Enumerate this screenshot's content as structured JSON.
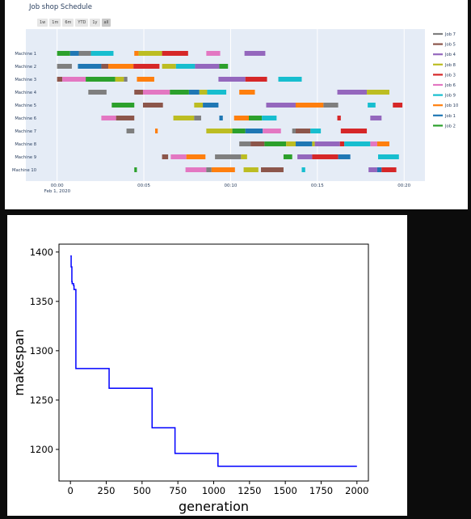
{
  "gantt": {
    "title": "Job shop Schedule",
    "range_buttons": [
      "1w",
      "1m",
      "6m",
      "YTD",
      "1y",
      "all"
    ],
    "active_range": "all",
    "date_label": "Feb 1, 2020",
    "machines": [
      "Machine 1",
      "Machine 2",
      "Machine 3",
      "Machine 4",
      "Machine 5",
      "Machine 6",
      "Machine 7",
      "Machine 8",
      "Machine 9",
      "Machine 10"
    ],
    "x_ticks": [
      "00:00",
      "00:05",
      "00:10",
      "00:15",
      "00:20"
    ],
    "x_tick_minutes": [
      0,
      5,
      10,
      15,
      20
    ],
    "x_range_minutes": [
      -1.8,
      21.2
    ],
    "jobs": [
      {
        "name": "Job 7",
        "color": "#7f7f7f"
      },
      {
        "name": "Job 5",
        "color": "#8c564b"
      },
      {
        "name": "Job 4",
        "color": "#9467bd"
      },
      {
        "name": "Job 8",
        "color": "#bcbd22"
      },
      {
        "name": "Job 3",
        "color": "#d62728"
      },
      {
        "name": "Job 6",
        "color": "#e377c2"
      },
      {
        "name": "Job 9",
        "color": "#17becf"
      },
      {
        "name": "Job 10",
        "color": "#ff7f0e"
      },
      {
        "name": "Job 1",
        "color": "#1f77b4"
      },
      {
        "name": "Job 2",
        "color": "#2ca02c"
      }
    ],
    "tasks": [
      [
        0,
        "Job 2",
        0.0,
        0.75
      ],
      [
        0,
        "Job 1",
        0.75,
        1.25
      ],
      [
        0,
        "Job 7",
        1.25,
        1.95
      ],
      [
        0,
        "Job 9",
        1.95,
        3.25
      ],
      [
        0,
        "Job 10",
        4.45,
        4.7
      ],
      [
        0,
        "Job 8",
        4.7,
        6.05
      ],
      [
        0,
        "Job 3",
        6.05,
        7.55
      ],
      [
        0,
        "Job 6",
        8.6,
        9.4
      ],
      [
        0,
        "Job 4",
        10.8,
        12.0
      ],
      [
        1,
        "Job 7",
        0.0,
        0.85
      ],
      [
        1,
        "Job 1",
        1.2,
        2.55
      ],
      [
        1,
        "Job 5",
        2.55,
        2.95
      ],
      [
        1,
        "Job 10",
        2.95,
        4.4
      ],
      [
        1,
        "Job 3",
        4.4,
        5.9
      ],
      [
        1,
        "Job 8",
        6.05,
        6.85
      ],
      [
        1,
        "Job 9",
        6.85,
        7.95
      ],
      [
        1,
        "Job 4",
        7.95,
        9.35
      ],
      [
        1,
        "Job 2",
        9.35,
        9.85
      ],
      [
        2,
        "Job 5",
        0.0,
        0.3
      ],
      [
        2,
        "Job 6",
        0.3,
        1.65
      ],
      [
        2,
        "Job 2",
        1.65,
        3.35
      ],
      [
        2,
        "Job 8",
        3.35,
        3.85
      ],
      [
        2,
        "Job 7",
        3.85,
        4.05
      ],
      [
        2,
        "Job 10",
        4.6,
        5.6
      ],
      [
        2,
        "Job 4",
        9.3,
        10.85
      ],
      [
        2,
        "Job 3",
        10.85,
        12.1
      ],
      [
        2,
        "Job 9",
        12.75,
        14.1
      ],
      [
        3,
        "Job 7",
        1.8,
        2.85
      ],
      [
        3,
        "Job 5",
        4.45,
        4.95
      ],
      [
        3,
        "Job 6",
        4.95,
        6.5
      ],
      [
        3,
        "Job 2",
        6.5,
        7.6
      ],
      [
        3,
        "Job 1",
        7.6,
        8.2
      ],
      [
        3,
        "Job 8",
        8.2,
        8.65
      ],
      [
        3,
        "Job 9",
        8.65,
        9.75
      ],
      [
        3,
        "Job 10",
        10.5,
        11.4
      ],
      [
        3,
        "Job 4",
        16.15,
        17.85
      ],
      [
        3,
        "Job 8",
        17.85,
        19.15
      ],
      [
        4,
        "Job 2",
        3.15,
        4.45
      ],
      [
        4,
        "Job 5",
        4.95,
        6.1
      ],
      [
        4,
        "Job 8",
        7.9,
        8.4
      ],
      [
        4,
        "Job 1",
        8.4,
        9.3
      ],
      [
        4,
        "Job 4",
        12.05,
        13.75
      ],
      [
        4,
        "Job 10",
        13.75,
        15.35
      ],
      [
        4,
        "Job 7",
        15.35,
        16.2
      ],
      [
        4,
        "Job 9",
        17.9,
        18.35
      ],
      [
        4,
        "Job 3",
        19.35,
        19.9
      ],
      [
        5,
        "Job 6",
        2.55,
        3.4
      ],
      [
        5,
        "Job 5",
        3.4,
        4.45
      ],
      [
        5,
        "Job 8",
        6.7,
        7.9
      ],
      [
        5,
        "Job 7",
        7.9,
        8.3
      ],
      [
        5,
        "Job 1",
        9.35,
        9.55
      ],
      [
        5,
        "Job 10",
        10.2,
        11.05
      ],
      [
        5,
        "Job 2",
        11.05,
        11.8
      ],
      [
        5,
        "Job 9",
        11.8,
        12.65
      ],
      [
        5,
        "Job 3",
        16.15,
        16.35
      ],
      [
        5,
        "Job 4",
        18.05,
        18.7
      ],
      [
        6,
        "Job 7",
        4.0,
        4.45
      ],
      [
        6,
        "Job 10",
        5.65,
        5.8
      ],
      [
        6,
        "Job 8",
        8.6,
        10.1
      ],
      [
        6,
        "Job 2",
        10.1,
        10.85
      ],
      [
        6,
        "Job 1",
        10.85,
        11.85
      ],
      [
        6,
        "Job 6",
        11.85,
        12.9
      ],
      [
        6,
        "Job 7",
        13.55,
        13.75
      ],
      [
        6,
        "Job 5",
        13.75,
        14.6
      ],
      [
        6,
        "Job 9",
        14.6,
        15.2
      ],
      [
        6,
        "Job 3",
        16.35,
        17.85
      ],
      [
        7,
        "Job 7",
        10.5,
        11.15
      ],
      [
        7,
        "Job 5",
        11.15,
        11.95
      ],
      [
        7,
        "Job 2",
        11.95,
        13.2
      ],
      [
        7,
        "Job 8",
        13.2,
        13.75
      ],
      [
        7,
        "Job 1",
        13.75,
        14.7
      ],
      [
        7,
        "Job 8",
        14.7,
        14.85
      ],
      [
        7,
        "Job 4",
        14.85,
        16.3
      ],
      [
        7,
        "Job 3",
        16.3,
        16.55
      ],
      [
        7,
        "Job 9",
        16.55,
        18.05
      ],
      [
        7,
        "Job 6",
        18.05,
        18.45
      ],
      [
        7,
        "Job 10",
        18.45,
        19.15
      ],
      [
        8,
        "Job 5",
        6.05,
        6.4
      ],
      [
        8,
        "Job 6",
        6.55,
        7.45
      ],
      [
        8,
        "Job 10",
        7.45,
        8.55
      ],
      [
        8,
        "Job 7",
        9.1,
        10.6
      ],
      [
        8,
        "Job 8",
        10.6,
        10.95
      ],
      [
        8,
        "Job 2",
        13.05,
        13.55
      ],
      [
        8,
        "Job 4",
        13.85,
        14.7
      ],
      [
        8,
        "Job 3",
        14.7,
        16.2
      ],
      [
        8,
        "Job 1",
        16.2,
        16.9
      ],
      [
        8,
        "Job 9",
        18.5,
        19.7
      ],
      [
        9,
        "Job 2",
        4.45,
        4.6
      ],
      [
        9,
        "Job 6",
        7.4,
        8.6
      ],
      [
        9,
        "Job 7",
        8.6,
        8.9
      ],
      [
        9,
        "Job 10",
        8.9,
        10.25
      ],
      [
        9,
        "Job 8",
        10.75,
        11.6
      ],
      [
        9,
        "Job 5",
        11.75,
        13.05
      ],
      [
        9,
        "Job 9",
        14.1,
        14.3
      ],
      [
        9,
        "Job 4",
        17.95,
        18.45
      ],
      [
        9,
        "Job 1",
        18.45,
        18.7
      ],
      [
        9,
        "Job 3",
        18.7,
        19.55
      ]
    ]
  },
  "chart_data": [
    {
      "type": "bar",
      "title": "Job shop Schedule",
      "subtype": "gantt",
      "x_axis": "time",
      "x_ticks": [
        "00:00",
        "00:05",
        "00:10",
        "00:15",
        "00:20"
      ],
      "categories": [
        "Machine 1",
        "Machine 2",
        "Machine 3",
        "Machine 4",
        "Machine 5",
        "Machine 6",
        "Machine 7",
        "Machine 8",
        "Machine 9",
        "Machine 10"
      ],
      "legend": "right"
    },
    {
      "type": "line",
      "title": "",
      "xlabel": "generation",
      "ylabel": "makespan",
      "xlim": [
        -80,
        2080
      ],
      "ylim": [
        1168,
        1408
      ],
      "xticks": [
        0,
        250,
        500,
        750,
        1000,
        1250,
        1500,
        1750,
        2000
      ],
      "yticks": [
        1200,
        1250,
        1300,
        1350,
        1400
      ],
      "grid": false,
      "color": "#0000ff",
      "step": true,
      "x": [
        0,
        5,
        10,
        12,
        22,
        25,
        30,
        38,
        270,
        570,
        730,
        1030,
        2000
      ],
      "y": [
        1396,
        1385,
        1370,
        1368,
        1366,
        1362,
        1362,
        1282,
        1262,
        1222,
        1196,
        1183,
        1183
      ]
    }
  ]
}
